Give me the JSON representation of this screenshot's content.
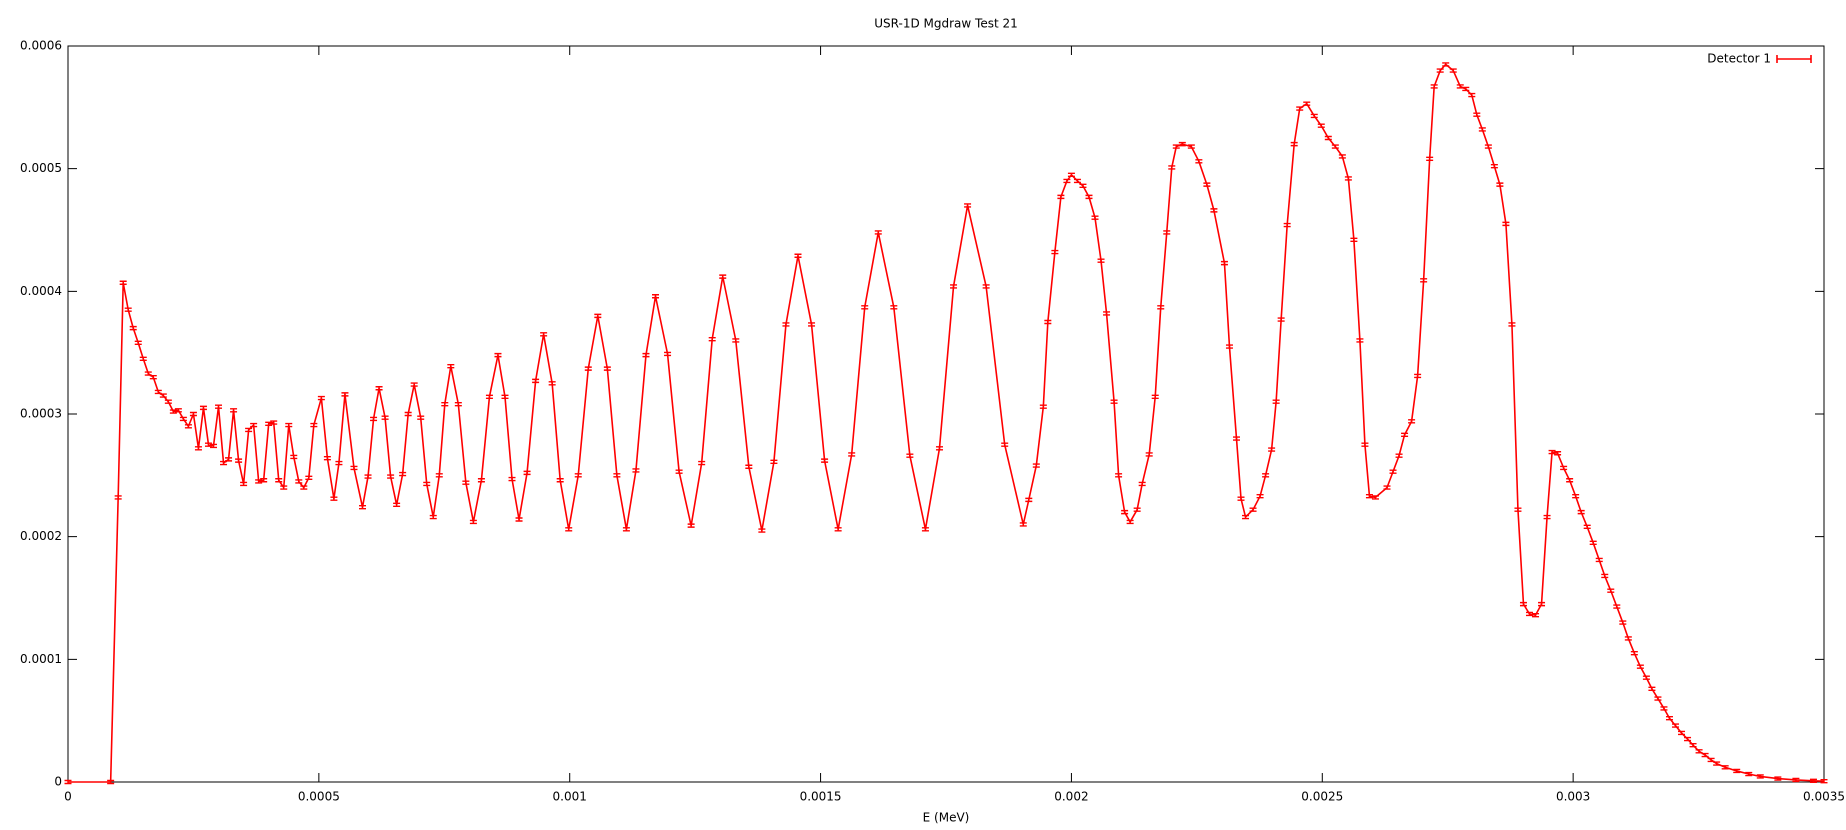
{
  "chart_data": {
    "type": "line",
    "title": "USR-1D Mgdraw Test 21",
    "x_label": "E (MeV)",
    "xlim": [
      0,
      0.0035
    ],
    "xticks": [
      0,
      0.0005,
      0.001,
      0.0015,
      0.002,
      0.0025,
      0.003,
      0.0035
    ],
    "ylim": [
      0,
      0.0006
    ],
    "yticks": [
      0,
      0.0001,
      0.0002,
      0.0003,
      0.0004,
      0.0005,
      0.0006
    ],
    "legend": "top-right",
    "x": [
      0,
      8.5e-05,
      0.0001,
      0.00011,
      0.00012,
      0.00013,
      0.00014,
      0.00015,
      0.00016,
      0.00017,
      0.00018,
      0.00019,
      0.0002,
      0.00021,
      0.00022,
      0.00023,
      0.00024,
      0.00025,
      0.00026,
      0.00027,
      0.00028,
      0.00029,
      0.0003,
      0.00031,
      0.00032,
      0.00033,
      0.00034,
      0.00035,
      0.00036,
      0.00037,
      0.00038,
      0.00039,
      0.0004,
      0.00041,
      0.00042,
      0.00043,
      0.00044,
      0.00045,
      0.00046,
      0.00047,
      0.00048,
      0.00049,
      0.000505,
      0.000517,
      0.00053,
      0.00054,
      0.000552,
      0.00057,
      0.000587,
      0.000598,
      0.000609,
      0.00062,
      0.000632,
      0.000643,
      0.000655,
      0.000667,
      0.000678,
      0.00069,
      0.000703,
      0.000715,
      0.000728,
      0.00074,
      0.000751,
      0.000763,
      0.000778,
      0.000793,
      0.000808,
      0.000824,
      0.00084,
      0.000857,
      0.000871,
      0.000885,
      0.000899,
      0.000915,
      0.000932,
      0.000948,
      0.000965,
      0.000981,
      0.000998,
      0.001017,
      0.001037,
      0.001056,
      0.001075,
      0.001094,
      0.001113,
      0.001132,
      0.001152,
      0.001171,
      0.001195,
      0.001218,
      0.001242,
      0.001263,
      0.001284,
      0.001305,
      0.001331,
      0.001357,
      0.001383,
      0.001407,
      0.001431,
      0.001455,
      0.001482,
      0.001508,
      0.001535,
      0.001562,
      0.001588,
      0.001615,
      0.001646,
      0.001678,
      0.001709,
      0.001737,
      0.001765,
      0.001793,
      0.00183,
      0.001867,
      0.001904,
      0.001915,
      0.00193,
      0.001944,
      0.001953,
      0.001967,
      0.001979,
      0.001991,
      0.002,
      0.002012,
      0.002023,
      0.002035,
      0.002047,
      0.002059,
      0.00207,
      0.002085,
      0.002094,
      0.002106,
      0.002117,
      0.002131,
      0.002141,
      0.002155,
      0.002167,
      0.002178,
      0.00219,
      0.0022,
      0.002209,
      0.002221,
      0.002239,
      0.002254,
      0.00227,
      0.002284,
      0.002305,
      0.002315,
      0.002329,
      0.002338,
      0.002347,
      0.002362,
      0.002376,
      0.002387,
      0.002399,
      0.002408,
      0.002418,
      0.00243,
      0.002444,
      0.002455,
      0.002469,
      0.002484,
      0.002498,
      0.002512,
      0.002526,
      0.00254,
      0.002552,
      0.002563,
      0.002575,
      0.002585,
      0.002594,
      0.002606,
      0.002629,
      0.002641,
      0.002653,
      0.002664,
      0.002678,
      0.00269,
      0.002702,
      0.002714,
      0.002723,
      0.002735,
      0.002746,
      0.002761,
      0.002775,
      0.002786,
      0.002798,
      0.002808,
      0.002819,
      0.002831,
      0.002843,
      0.002854,
      0.002866,
      0.002878,
      0.00289,
      0.002901,
      0.002913,
      0.002925,
      0.002937,
      0.002948,
      0.002958,
      0.002969,
      0.002981,
      0.002993,
      0.003005,
      0.003016,
      0.003028,
      0.00304,
      0.003052,
      0.003063,
      0.003075,
      0.003087,
      0.003099,
      0.00311,
      0.003122,
      0.003134,
      0.003146,
      0.003157,
      0.003169,
      0.003181,
      0.003192,
      0.003204,
      0.003216,
      0.003228,
      0.003239,
      0.003251,
      0.003263,
      0.003275,
      0.003286,
      0.003303,
      0.003326,
      0.00335,
      0.003373,
      0.003408,
      0.003444,
      0.003479,
      0.0035
    ],
    "series": [
      {
        "name": "Detector 1",
        "color": "#ff0000",
        "values": [
          0,
          0,
          0.000232,
          0.000407,
          0.000385,
          0.00037,
          0.000358,
          0.000345,
          0.000333,
          0.00033,
          0.000318,
          0.000315,
          0.00031,
          0.000302,
          0.000303,
          0.000296,
          0.00029,
          0.0003,
          0.000272,
          0.000305,
          0.000275,
          0.000274,
          0.000306,
          0.00026,
          0.000263,
          0.000303,
          0.000262,
          0.000243,
          0.000287,
          0.000291,
          0.000245,
          0.000246,
          0.000292,
          0.000293,
          0.000246,
          0.00024,
          0.000291,
          0.000265,
          0.000245,
          0.00024,
          0.000248,
          0.000291,
          0.000313,
          0.000264,
          0.000231,
          0.00026,
          0.000316,
          0.000256,
          0.000224,
          0.000249,
          0.000296,
          0.000321,
          0.000297,
          0.000249,
          0.000226,
          0.000251,
          0.0003,
          0.000324,
          0.000297,
          0.000243,
          0.000216,
          0.00025,
          0.000308,
          0.000339,
          0.000308,
          0.000244,
          0.000212,
          0.000246,
          0.000314,
          0.000348,
          0.000314,
          0.000247,
          0.000214,
          0.000252,
          0.000327,
          0.000365,
          0.000325,
          0.000246,
          0.000206,
          0.00025,
          0.000337,
          0.00038,
          0.000337,
          0.00025,
          0.000206,
          0.000254,
          0.000348,
          0.000396,
          0.000349,
          0.000253,
          0.000209,
          0.00026,
          0.000361,
          0.000412,
          0.00036,
          0.000257,
          0.000205,
          0.000261,
          0.000373,
          0.000429,
          0.000373,
          0.000262,
          0.000206,
          0.000267,
          0.000387,
          0.000448,
          0.000387,
          0.000266,
          0.000206,
          0.000272,
          0.000404,
          0.00047,
          0.000404,
          0.000275,
          0.00021,
          0.00023,
          0.000258,
          0.000306,
          0.000375,
          0.000432,
          0.000477,
          0.00049,
          0.000495,
          0.00049,
          0.000486,
          0.000477,
          0.00046,
          0.000425,
          0.000382,
          0.00031,
          0.00025,
          0.00022,
          0.000212,
          0.000222,
          0.000243,
          0.000267,
          0.000314,
          0.000387,
          0.000448,
          0.000501,
          0.000518,
          0.00052,
          0.000518,
          0.000506,
          0.000487,
          0.000466,
          0.000423,
          0.000355,
          0.00028,
          0.000231,
          0.000216,
          0.000222,
          0.000233,
          0.00025,
          0.000271,
          0.00031,
          0.000377,
          0.000454,
          0.00052,
          0.000549,
          0.000553,
          0.000543,
          0.000535,
          0.000525,
          0.000518,
          0.00051,
          0.000492,
          0.000442,
          0.00036,
          0.000275,
          0.000233,
          0.000232,
          0.00024,
          0.000253,
          0.000266,
          0.000283,
          0.000294,
          0.000331,
          0.000409,
          0.000508,
          0.000567,
          0.00058,
          0.000585,
          0.00058,
          0.000567,
          0.000565,
          0.00056,
          0.000544,
          0.000532,
          0.000518,
          0.000502,
          0.000487,
          0.000455,
          0.000373,
          0.000222,
          0.000145,
          0.000137,
          0.000136,
          0.000145,
          0.000216,
          0.000269,
          0.000268,
          0.000256,
          0.000246,
          0.000233,
          0.00022,
          0.000208,
          0.000195,
          0.000181,
          0.000168,
          0.000156,
          0.000143,
          0.00013,
          0.000117,
          0.000105,
          9.4e-05,
          8.5e-05,
          7.6e-05,
          6.8e-05,
          6e-05,
          5.2e-05,
          4.6e-05,
          4e-05,
          3.5e-05,
          3e-05,
          2.5e-05,
          2.2e-05,
          1.8e-05,
          1.5e-05,
          1.2e-05,
          9e-06,
          6.5e-06,
          4.5e-06,
          2.8e-06,
          1.7e-06,
          1e-06,
          7e-07
        ]
      }
    ]
  }
}
